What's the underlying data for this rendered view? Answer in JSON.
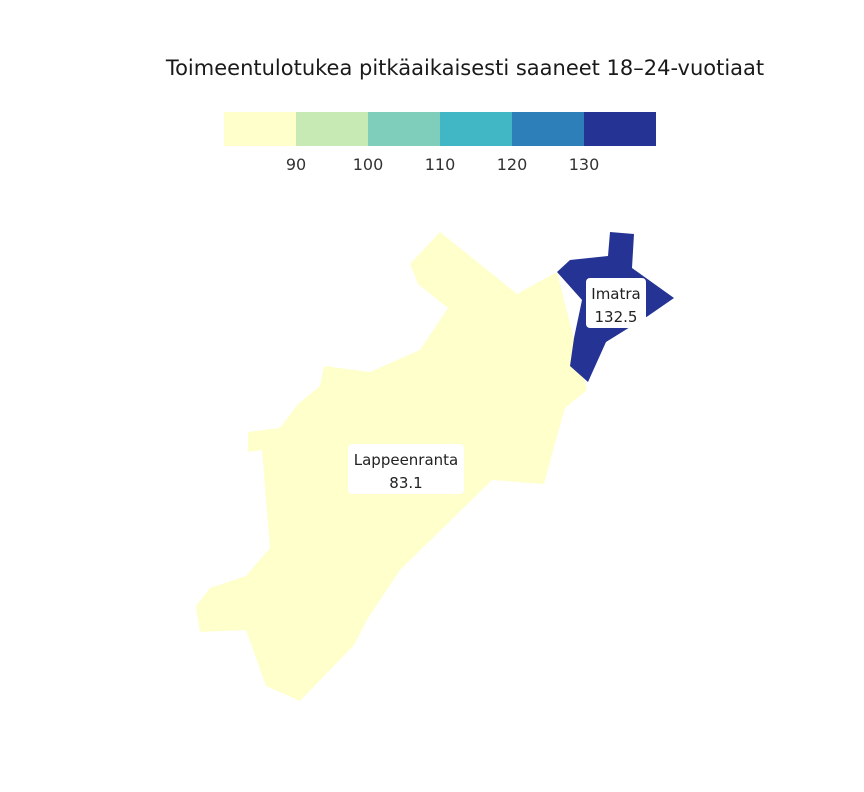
{
  "title": "Toimeentulotukea pitkäaikaisesti saaneet 18–24-vuotiaat",
  "legend": {
    "colors": [
      "#ffffcc",
      "#c7e9b4",
      "#7fcdbb",
      "#41b6c4",
      "#2c7fb8",
      "#253494"
    ],
    "ticks": [
      "90",
      "100",
      "110",
      "120",
      "130"
    ]
  },
  "regions": [
    {
      "name": "Lappeenranta",
      "value": "83.1",
      "color": "#ffffcc"
    },
    {
      "name": "Imatra",
      "value": "132.5",
      "color": "#253494"
    }
  ]
}
